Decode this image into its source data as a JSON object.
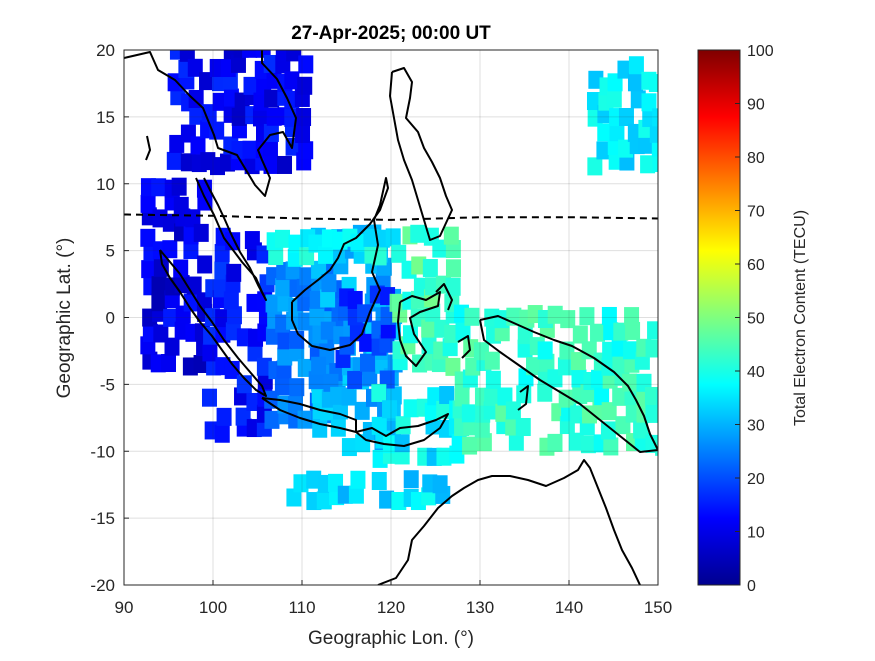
{
  "title": "27-Apr-2025; 00:00 UT",
  "xlabel": "Geographic Lon. (°)",
  "ylabel": "Geographic Lat. (°)",
  "colorbar": {
    "label": "Total Electron Content (TECU)",
    "min": 0,
    "max": 100,
    "ticks": [
      "0",
      "10",
      "20",
      "30",
      "40",
      "50",
      "60",
      "70",
      "80",
      "90",
      "100"
    ],
    "colormap": "jet"
  },
  "chart_data": {
    "type": "heatmap",
    "title": "27-Apr-2025; 00:00 UT",
    "xlabel": "Geographic Lon. (°)",
    "ylabel": "Geographic Lat. (°)",
    "xlim": [
      90,
      150
    ],
    "ylim": [
      -20,
      20
    ],
    "xticks": [
      "90",
      "100",
      "110",
      "120",
      "130",
      "140",
      "150"
    ],
    "yticks": [
      "20",
      "15",
      "10",
      "5",
      "0",
      "-5",
      "-10",
      "-15",
      "-20"
    ],
    "grid": true,
    "value_range": [
      0,
      100
    ],
    "magnetic_equator": [
      [
        90,
        7.7
      ],
      [
        100,
        7.6
      ],
      [
        110,
        7.4
      ],
      [
        120,
        7.3
      ],
      [
        130,
        7.5
      ],
      [
        140,
        7.5
      ],
      [
        150,
        7.4
      ]
    ],
    "tec_regions": [
      {
        "lon": [
          92,
          99
        ],
        "lat": [
          -4,
          10
        ],
        "tec": 10
      },
      {
        "lon": [
          99,
          106
        ],
        "lat": [
          -9,
          6
        ],
        "tec": 14
      },
      {
        "lon": [
          106,
          114
        ],
        "lat": [
          -8,
          3
        ],
        "tec": 25
      },
      {
        "lon": [
          111,
          120
        ],
        "lat": [
          -10,
          6
        ],
        "tec": 30
      },
      {
        "lon": [
          114,
          119
        ],
        "lat": [
          -5,
          2
        ],
        "tec": 18
      },
      {
        "lon": [
          118,
          127
        ],
        "lat": [
          -11,
          -6
        ],
        "tec": 36
      },
      {
        "lon": [
          120,
          127
        ],
        "lat": [
          -4,
          6
        ],
        "tec": 44
      },
      {
        "lon": [
          127,
          150
        ],
        "lat": [
          -10,
          0
        ],
        "tec": 42
      },
      {
        "lon": [
          142,
          150
        ],
        "lat": [
          11,
          19
        ],
        "tec": 36
      },
      {
        "lon": [
          108,
          126
        ],
        "lat": [
          -14,
          -12
        ],
        "tec": 34
      },
      {
        "lon": [
          95,
          110
        ],
        "lat": [
          11,
          20
        ],
        "tec": 12
      },
      {
        "lon": [
          106,
          119
        ],
        "lat": [
          4,
          6
        ],
        "tec": 38
      }
    ]
  }
}
